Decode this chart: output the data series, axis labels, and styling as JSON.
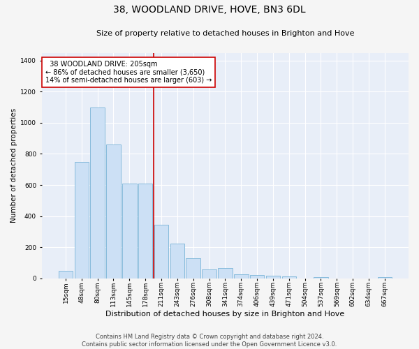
{
  "title": "38, WOODLAND DRIVE, HOVE, BN3 6DL",
  "subtitle": "Size of property relative to detached houses in Brighton and Hove",
  "xlabel": "Distribution of detached houses by size in Brighton and Hove",
  "ylabel": "Number of detached properties",
  "footer1": "Contains HM Land Registry data © Crown copyright and database right 2024.",
  "footer2": "Contains public sector information licensed under the Open Government Licence v3.0.",
  "bar_labels": [
    "15sqm",
    "48sqm",
    "80sqm",
    "113sqm",
    "145sqm",
    "178sqm",
    "211sqm",
    "243sqm",
    "276sqm",
    "308sqm",
    "341sqm",
    "374sqm",
    "406sqm",
    "439sqm",
    "471sqm",
    "504sqm",
    "537sqm",
    "569sqm",
    "602sqm",
    "634sqm",
    "667sqm"
  ],
  "bar_values": [
    50,
    750,
    1100,
    860,
    610,
    610,
    345,
    225,
    130,
    60,
    65,
    25,
    22,
    18,
    12,
    0,
    8,
    0,
    0,
    0,
    10
  ],
  "bar_color": "#cce0f5",
  "bar_edge_color": "#7ab4d8",
  "property_line_label": "38 WOODLAND DRIVE: 205sqm",
  "annotation_line1": "← 86% of detached houses are smaller (3,650)",
  "annotation_line2": "14% of semi-detached houses are larger (603) →",
  "red_line_color": "#cc0000",
  "annotation_box_color": "#ffffff",
  "annotation_box_edge": "#cc0000",
  "background_color": "#e8eef8",
  "grid_color": "#ffffff",
  "fig_bg_color": "#f5f5f5",
  "ylim": [
    0,
    1450
  ],
  "yticks": [
    0,
    200,
    400,
    600,
    800,
    1000,
    1200,
    1400
  ],
  "red_line_index": 6,
  "title_fontsize": 10,
  "subtitle_fontsize": 8,
  "ylabel_fontsize": 7.5,
  "xlabel_fontsize": 8,
  "tick_fontsize": 6.5,
  "footer_fontsize": 6,
  "annot_fontsize": 7
}
